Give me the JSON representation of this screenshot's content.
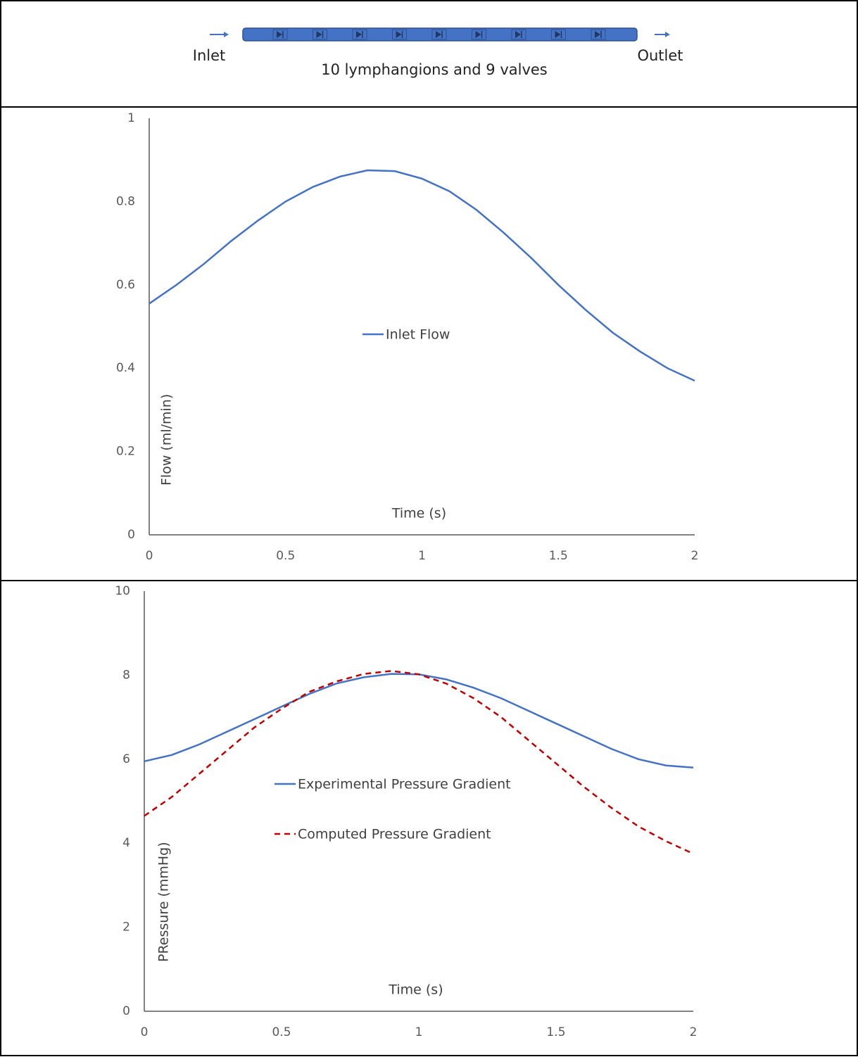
{
  "diagram": {
    "inlet": "Inlet",
    "outlet": "Outlet",
    "caption": "10 lymphangions and 9 valves"
  },
  "chart_data": [
    {
      "type": "line",
      "x_label": "Time (s)",
      "y_label": "Flow (ml/min)",
      "x": [
        0,
        0.1,
        0.2,
        0.3,
        0.4,
        0.5,
        0.6,
        0.7,
        0.8,
        0.9,
        1.0,
        1.1,
        1.2,
        1.3,
        1.4,
        1.5,
        1.6,
        1.7,
        1.8,
        1.9,
        2.0
      ],
      "series": [
        {
          "name": "Inlet Flow",
          "color": "#4472c4",
          "style": "solid",
          "values": [
            0.555,
            0.6,
            0.65,
            0.705,
            0.755,
            0.8,
            0.835,
            0.86,
            0.875,
            0.873,
            0.855,
            0.825,
            0.78,
            0.725,
            0.665,
            0.6,
            0.54,
            0.485,
            0.44,
            0.4,
            0.37
          ]
        }
      ],
      "xlim": [
        0,
        2
      ],
      "xticks": [
        0,
        0.5,
        1,
        1.5,
        2
      ],
      "ylim": [
        0,
        1
      ],
      "yticks": [
        0,
        0.2,
        0.4,
        0.6,
        0.8,
        1
      ],
      "grid": false,
      "legend": "center"
    },
    {
      "type": "line",
      "x_label": "Time (s)",
      "y_label": "PRessure (mmHg)",
      "x": [
        0,
        0.1,
        0.2,
        0.3,
        0.4,
        0.5,
        0.6,
        0.7,
        0.8,
        0.9,
        1.0,
        1.1,
        1.2,
        1.3,
        1.4,
        1.5,
        1.6,
        1.7,
        1.8,
        1.9,
        2.0
      ],
      "series": [
        {
          "name": "Experimental Pressure Gradient",
          "color": "#4472c4",
          "style": "solid",
          "values": [
            5.95,
            6.1,
            6.35,
            6.65,
            6.95,
            7.25,
            7.55,
            7.8,
            7.95,
            8.03,
            8.02,
            7.9,
            7.7,
            7.45,
            7.15,
            6.85,
            6.55,
            6.25,
            6.0,
            5.85,
            5.8
          ]
        },
        {
          "name": "Computed Pressure Gradient",
          "color": "#c00000",
          "style": "dashed",
          "values": [
            4.65,
            5.1,
            5.65,
            6.2,
            6.75,
            7.2,
            7.6,
            7.85,
            8.03,
            8.1,
            8.02,
            7.8,
            7.45,
            7.0,
            6.45,
            5.9,
            5.35,
            4.85,
            4.4,
            4.05,
            3.75
          ]
        }
      ],
      "xlim": [
        0,
        2
      ],
      "xticks": [
        0,
        0.5,
        1,
        1.5,
        2
      ],
      "ylim": [
        0,
        10
      ],
      "yticks": [
        0,
        2,
        4,
        6,
        8,
        10
      ],
      "grid": false,
      "legend": "center"
    }
  ]
}
